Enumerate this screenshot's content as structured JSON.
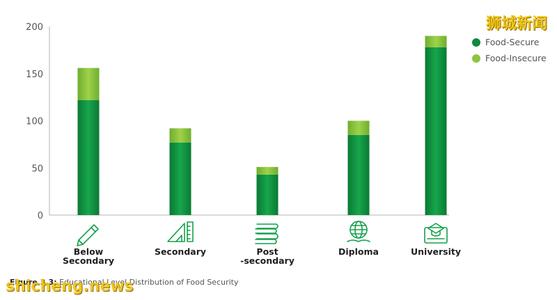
{
  "chart_data": {
    "type": "bar",
    "stacked": true,
    "categories": [
      "Below\nSecondary",
      "Secondary",
      "Post\n-secondary",
      "Diploma",
      "University"
    ],
    "series": [
      {
        "name": "Food-Secure",
        "values": [
          122,
          77,
          43,
          85,
          178
        ],
        "color": "#0f8a3c"
      },
      {
        "name": "Food-Insecure",
        "values": [
          34,
          15,
          8,
          15,
          12
        ],
        "color": "#8cc63f"
      }
    ],
    "yticks": [
      0,
      50,
      100,
      150,
      200
    ],
    "ylim": [
      0,
      200
    ],
    "grid": false,
    "legend_position": "top-right",
    "category_icons": [
      "pencil-icon",
      "ruler-set-icon",
      "books-icon",
      "globe-book-icon",
      "graduation-cap-icon"
    ]
  },
  "caption": {
    "figure_label": "Figure 3.3:",
    "text": "Educational Level Distribution of Food Security"
  },
  "watermarks": {
    "top_right": "狮城新闻",
    "bottom_left": "shicheng.news"
  }
}
